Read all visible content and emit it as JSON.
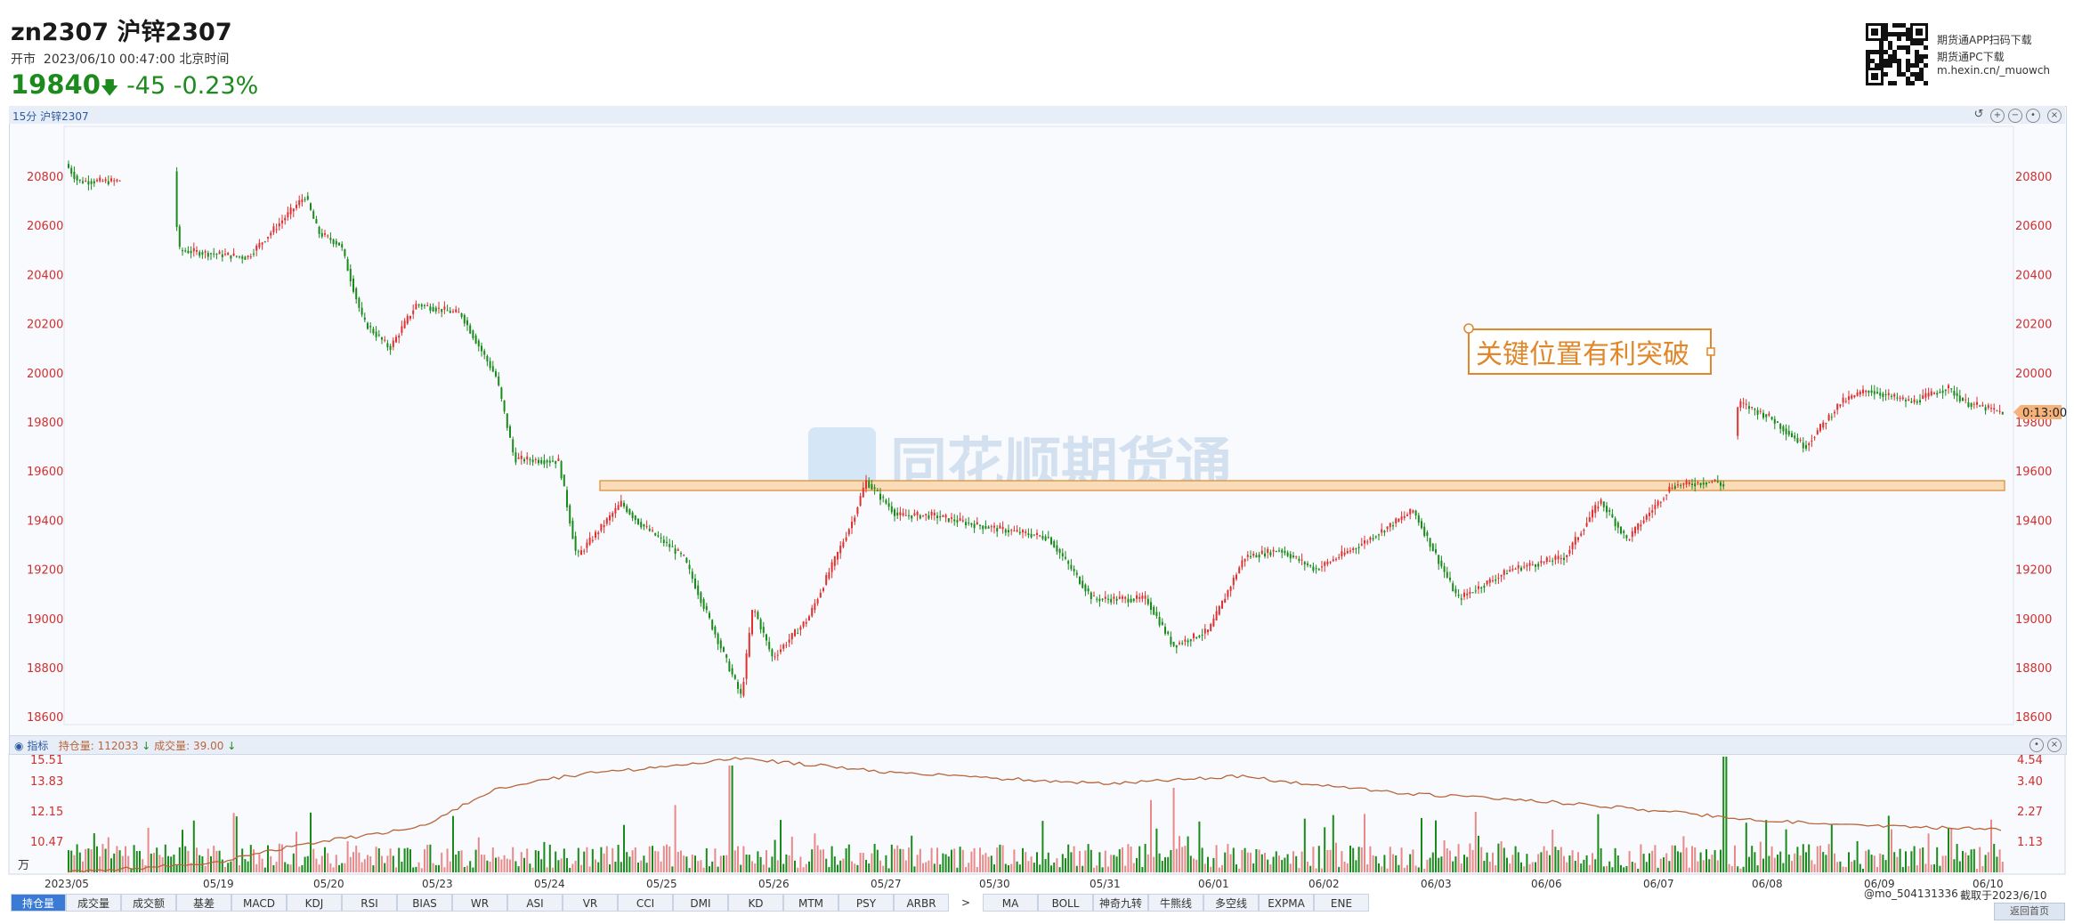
{
  "header": {
    "symbol": "zn2307 沪锌2307",
    "market_status": "开市",
    "datetime": "2023/06/10 00:47:00 北京时间",
    "price": "19840",
    "change": "-45",
    "change_pct": "-0.23%",
    "price_color": "#1d8a1d"
  },
  "promo": {
    "line1": "期货通APP扫码下载",
    "line2": "期货通PC下载",
    "line3": "m.hexin.cn/_muowch"
  },
  "main_chart": {
    "title": "15分 沪锌2307",
    "price_ticks": [
      "20800",
      "20600",
      "20400",
      "20200",
      "20000",
      "19800",
      "19600",
      "19400",
      "19200",
      "19000",
      "18800",
      "18600"
    ],
    "countdown": "0:13:00",
    "annotation": "关键位置有利突破",
    "watermark": "同花顺期货通",
    "up_color": "#e03030",
    "down_color": "#1a8a1a",
    "accent_color": "#e0872a"
  },
  "indicator": {
    "title": "指标",
    "open_interest_label": "持仓量: 112033",
    "volume_label": "成交量: 39.00",
    "left_ticks": [
      "15.51",
      "13.83",
      "12.15",
      "10.47"
    ],
    "right_ticks": [
      "4.54",
      "3.40",
      "2.27",
      "1.13"
    ],
    "unit": "万"
  },
  "x_axis": {
    "dates": [
      "2023/05",
      "05/19",
      "05/20",
      "05/23",
      "05/24",
      "05/25",
      "05/26",
      "05/27",
      "05/30",
      "05/31",
      "06/01",
      "06/02",
      "06/03",
      "06/06",
      "06/07",
      "06/08",
      "06/09",
      "06/10"
    ]
  },
  "tabs": [
    "持仓量",
    "成交量",
    "成交额",
    "基差",
    "MACD",
    "KDJ",
    "RSI",
    "BIAS",
    "WR",
    "ASI",
    "VR",
    "CCI",
    "DMI",
    "KD",
    "MTM",
    "PSY",
    "ARBR",
    ">",
    "MA",
    "BOLL",
    "神奇九转",
    "牛熊线",
    "多空线",
    "EXPMA",
    "ENE"
  ],
  "footer": {
    "user": "@mo_504131336",
    "date": "截取于2023/6/10",
    "corner_button": "返回首页"
  }
}
